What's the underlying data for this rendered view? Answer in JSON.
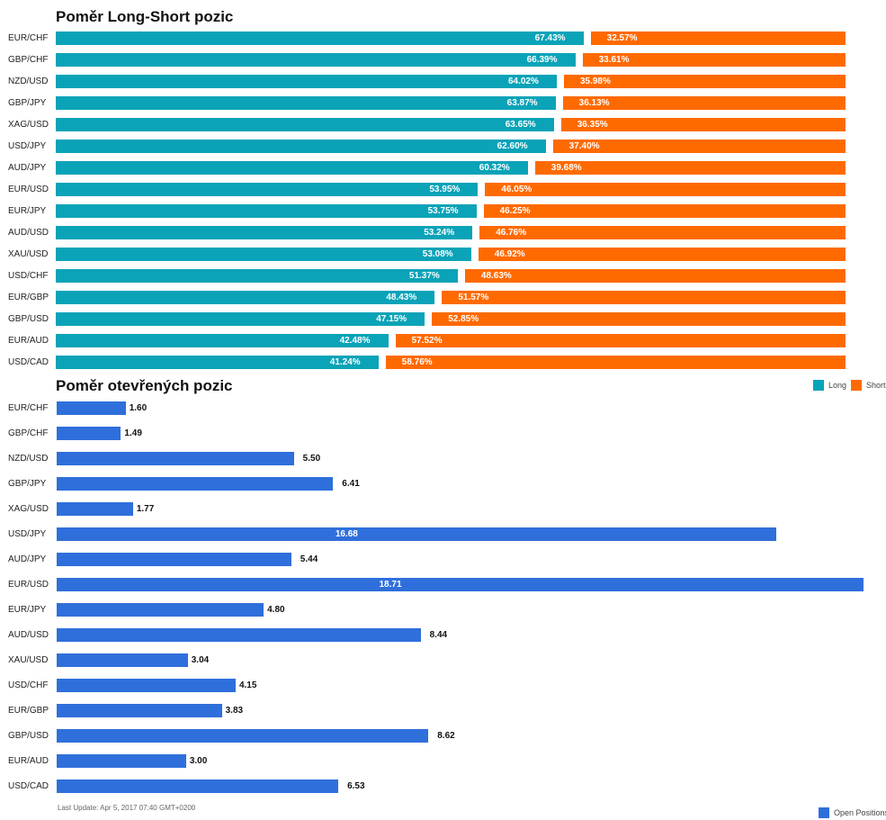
{
  "chart_data": [
    {
      "type": "bar",
      "orientation": "horizontal",
      "stacked": true,
      "title": "Poměr Long-Short pozic",
      "categories": [
        "EUR/CHF",
        "GBP/CHF",
        "NZD/USD",
        "GBP/JPY",
        "XAG/USD",
        "USD/JPY",
        "AUD/JPY",
        "EUR/USD",
        "EUR/JPY",
        "AUD/USD",
        "XAU/USD",
        "USD/CHF",
        "EUR/GBP",
        "GBP/USD",
        "EUR/AUD",
        "USD/CAD"
      ],
      "series": [
        {
          "name": "Long",
          "color": "#0aa3b8",
          "values": [
            67.43,
            66.39,
            64.02,
            63.87,
            63.65,
            62.6,
            60.32,
            53.95,
            53.75,
            53.24,
            53.08,
            51.37,
            48.43,
            47.15,
            42.48,
            41.24
          ]
        },
        {
          "name": "Short",
          "color": "#ff6a00",
          "values": [
            32.57,
            33.61,
            35.98,
            36.13,
            36.35,
            37.4,
            39.68,
            46.05,
            46.25,
            46.76,
            46.92,
            48.63,
            51.57,
            52.85,
            57.52,
            58.76
          ]
        }
      ],
      "labels": {
        "long": [
          "67.43%",
          "66.39%",
          "64.02%",
          "63.87%",
          "63.65%",
          "62.60%",
          "60.32%",
          "53.95%",
          "53.75%",
          "53.24%",
          "53.08%",
          "51.37%",
          "48.43%",
          "47.15%",
          "42.48%",
          "41.24%"
        ],
        "short": [
          "32.57%",
          "33.61%",
          "35.98%",
          "36.13%",
          "36.35%",
          "37.40%",
          "39.68%",
          "46.05%",
          "46.25%",
          "46.76%",
          "46.92%",
          "48.63%",
          "51.57%",
          "52.85%",
          "57.52%",
          "58.76%"
        ]
      },
      "legend": {
        "placement": "bottom-right",
        "items": [
          {
            "name": "Long",
            "color": "#0aa3b8"
          },
          {
            "name": "Short",
            "color": "#ff6a00"
          }
        ]
      }
    },
    {
      "type": "bar",
      "orientation": "horizontal",
      "title": "Poměr otevřených pozic",
      "categories": [
        "EUR/CHF",
        "GBP/CHF",
        "NZD/USD",
        "GBP/JPY",
        "XAG/USD",
        "USD/JPY",
        "AUD/JPY",
        "EUR/USD",
        "EUR/JPY",
        "AUD/USD",
        "XAU/USD",
        "USD/CHF",
        "EUR/GBP",
        "GBP/USD",
        "EUR/AUD",
        "USD/CAD"
      ],
      "series": [
        {
          "name": "Open Positions",
          "color": "#2f6fdb",
          "values": [
            1.6,
            1.49,
            5.5,
            6.41,
            1.77,
            16.68,
            5.44,
            18.71,
            4.8,
            8.44,
            3.04,
            4.15,
            3.83,
            8.62,
            3.0,
            6.53
          ]
        }
      ],
      "labels": [
        "1.60",
        "1.49",
        "5.50",
        "6.41",
        "1.77",
        "16.68",
        "5.44",
        "18.71",
        "4.80",
        "8.44",
        "3.04",
        "4.15",
        "3.83",
        "8.62",
        "3.00",
        "6.53"
      ],
      "xlim": [
        0,
        18.71
      ],
      "legend": {
        "placement": "bottom-right",
        "items": [
          {
            "name": "Open Positions",
            "color": "#2f6fdb"
          }
        ]
      }
    }
  ],
  "footer": {
    "last_update": "Last Update: Apr 5, 2017 07:40 GMT+0200"
  }
}
